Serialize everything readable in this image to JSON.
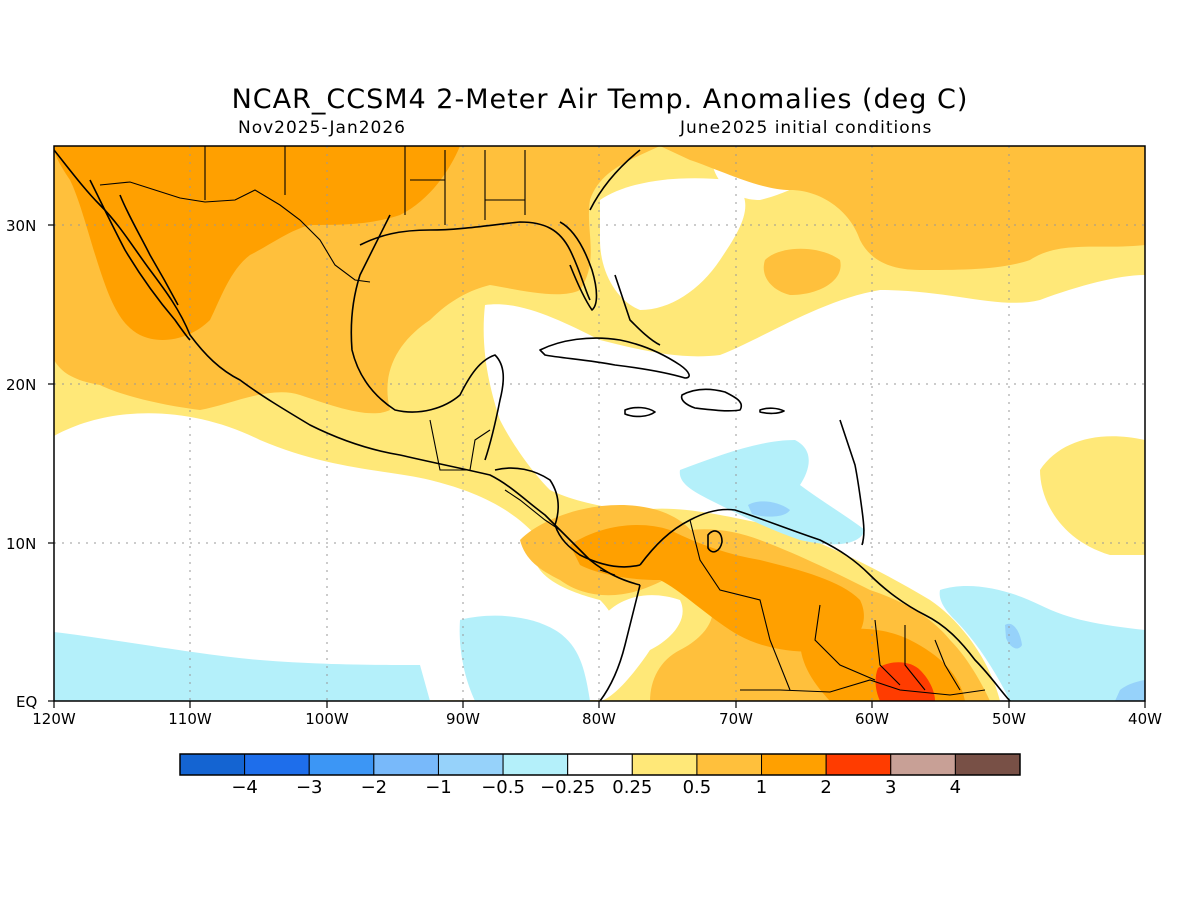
{
  "title": "NCAR_CCSM4 2-Meter Air Temp. Anomalies (deg C)",
  "subtitle_left": "Nov2025-Jan2026",
  "subtitle_right": "June2025 initial conditions",
  "lat_labels": [
    "30N",
    "20N",
    "10N",
    "EQ"
  ],
  "lon_labels": [
    "120W",
    "110W",
    "100W",
    "90W",
    "80W",
    "70W",
    "60W",
    "50W",
    "40W"
  ],
  "colorbar": {
    "colors": [
      "#1464d2",
      "#1e6eeb",
      "#3c96f5",
      "#78b9fa",
      "#96d2fa",
      "#b4f0fa",
      "#ffffff",
      "#ffe878",
      "#ffc03c",
      "#ffa000",
      "#ff3c00",
      "#c8a096",
      "#785046"
    ],
    "labels": [
      "-4",
      "-3",
      "-2",
      "-1",
      "-0.5",
      "-0.25",
      "0.25",
      "0.5",
      "1",
      "2",
      "3",
      "4"
    ]
  },
  "anomaly_colors": {
    "light_yellow": "#ffe878",
    "yellow_orange": "#ffc03c",
    "orange": "#ffa000",
    "red": "#ff3c00",
    "light_blue": "#b4f0fa",
    "blue": "#96d2fa"
  }
}
